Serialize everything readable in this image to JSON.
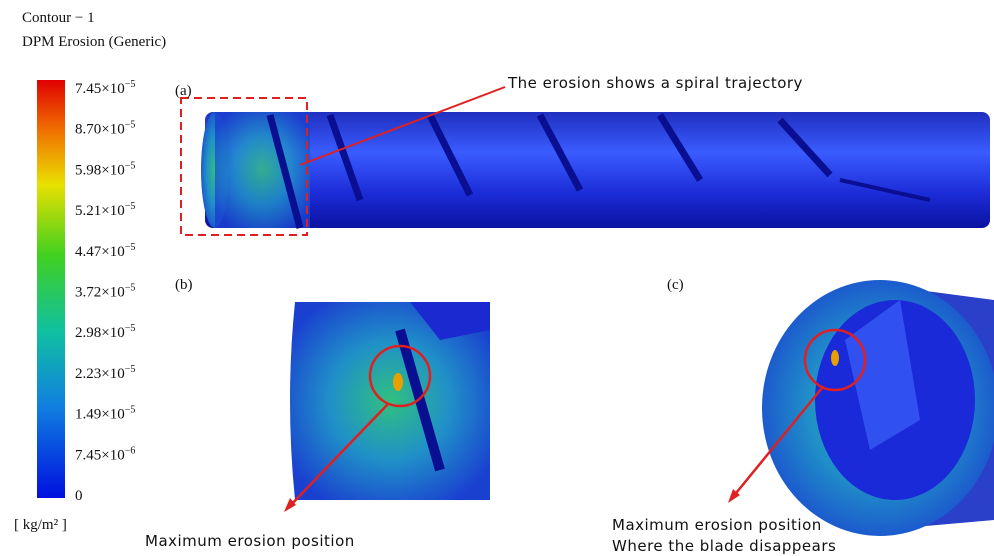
{
  "legend": {
    "title": "Contour − 1",
    "variable": "DPM Erosion (Generic)",
    "labels": [
      {
        "mantissa": "7.45×10",
        "exponent": "−5"
      },
      {
        "mantissa": "8.70×10",
        "exponent": "−5"
      },
      {
        "mantissa": "5.98×10",
        "exponent": "−5"
      },
      {
        "mantissa": "5.21×10",
        "exponent": "−5"
      },
      {
        "mantissa": "4.47×10",
        "exponent": "−5"
      },
      {
        "mantissa": "3.72×10",
        "exponent": "−5"
      },
      {
        "mantissa": "2.98×10",
        "exponent": "−5"
      },
      {
        "mantissa": "2.23×10",
        "exponent": "−5"
      },
      {
        "mantissa": "1.49×10",
        "exponent": "−5"
      },
      {
        "mantissa": "7.45×10",
        "exponent": "−6"
      },
      {
        "mantissa": "0"
      }
    ],
    "unit": "[ kg/m² ]"
  },
  "panels": [
    {
      "label": "(a)",
      "annotation": [
        "The erosion shows a spiral trajectory"
      ]
    },
    {
      "label": "(b)",
      "annotation": [
        "Maximum  erosion position"
      ]
    },
    {
      "label": "(c)",
      "annotation": [
        "Maximum  erosion position",
        "Where the blade disappears"
      ]
    }
  ]
}
